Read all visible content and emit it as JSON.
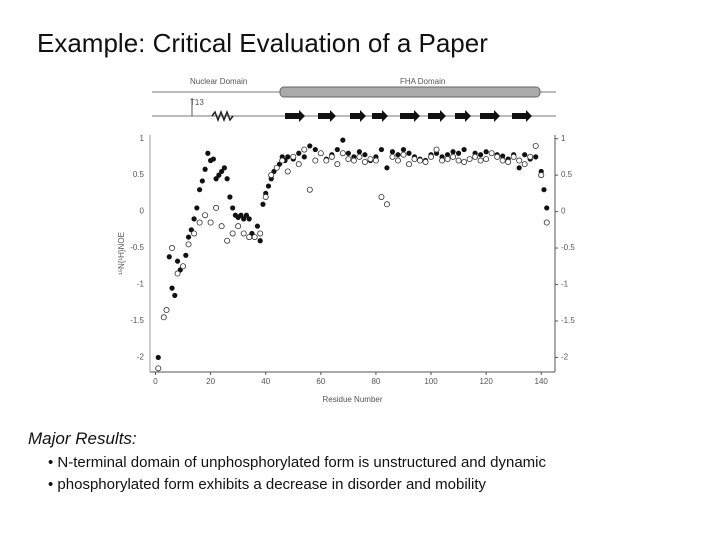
{
  "slide": {
    "title": "Example: Critical Evaluation of a Paper",
    "heading": "Major Results:",
    "bullets": [
      "• N-terminal domain of unphosphorylated form is unstructured and dynamic",
      "• phosphorylated form exhibits a decrease in disorder and mobility"
    ]
  },
  "chart_data": {
    "type": "scatter",
    "xlabel": "Residue Number",
    "ylabel": "¹⁵N{¹H}NOE",
    "annotations": [
      "Nuclear Domain",
      "FHA Domain",
      "T13"
    ],
    "xlim": [
      -2,
      145
    ],
    "ylim": [
      -2.2,
      1.05
    ],
    "xticks": [
      0,
      20,
      40,
      60,
      80,
      100,
      120,
      140
    ],
    "yticks": [
      -2,
      -1.5,
      -1,
      -0.5,
      0,
      0.5,
      1
    ],
    "series": [
      {
        "color": "#111111",
        "fill": "filled",
        "x": [
          1,
          5,
          6,
          7,
          8,
          9,
          11,
          12,
          13,
          14,
          15,
          16,
          17,
          18,
          19,
          20,
          21,
          22,
          23,
          24,
          25,
          26,
          27,
          28,
          29,
          30,
          31,
          32,
          33,
          34,
          35,
          36,
          37,
          38,
          39,
          40,
          41,
          42,
          43,
          44,
          45,
          46,
          47,
          48,
          50,
          52,
          54,
          56,
          58,
          60,
          62,
          64,
          66,
          68,
          70,
          72,
          74,
          76,
          78,
          80,
          82,
          84,
          86,
          88,
          90,
          92,
          94,
          96,
          98,
          100,
          102,
          104,
          106,
          108,
          110,
          112,
          114,
          116,
          118,
          120,
          122,
          124,
          126,
          128,
          130,
          132,
          134,
          136,
          138,
          140,
          141,
          142
        ],
        "values": [
          -2.0,
          -0.62,
          -1.05,
          -1.15,
          -0.68,
          -0.8,
          -0.6,
          -0.35,
          -0.25,
          -0.1,
          0.05,
          0.3,
          0.42,
          0.58,
          0.8,
          0.7,
          0.72,
          0.45,
          0.5,
          0.55,
          0.6,
          0.45,
          0.2,
          0.05,
          -0.05,
          -0.08,
          -0.05,
          -0.1,
          -0.05,
          -0.1,
          -0.3,
          -0.35,
          -0.2,
          -0.4,
          0.1,
          0.25,
          0.35,
          0.45,
          0.55,
          0.6,
          0.65,
          0.75,
          0.7,
          0.75,
          0.72,
          0.8,
          0.75,
          0.9,
          0.85,
          0.8,
          0.72,
          0.78,
          0.85,
          0.98,
          0.8,
          0.75,
          0.82,
          0.78,
          0.7,
          0.75,
          0.85,
          0.6,
          0.82,
          0.78,
          0.85,
          0.8,
          0.75,
          0.72,
          0.7,
          0.78,
          0.8,
          0.75,
          0.78,
          0.82,
          0.8,
          0.85,
          0.72,
          0.8,
          0.78,
          0.82,
          0.8,
          0.78,
          0.76,
          0.72,
          0.78,
          0.6,
          0.78,
          0.72,
          0.75,
          0.55,
          0.3,
          0.05
        ]
      },
      {
        "color": "#333333",
        "fill": "open",
        "x": [
          1,
          3,
          4,
          6,
          8,
          10,
          12,
          14,
          16,
          18,
          20,
          22,
          24,
          26,
          28,
          30,
          32,
          34,
          36,
          38,
          40,
          42,
          44,
          46,
          48,
          50,
          52,
          54,
          56,
          58,
          60,
          62,
          64,
          66,
          68,
          70,
          72,
          74,
          76,
          78,
          80,
          82,
          84,
          86,
          88,
          90,
          92,
          94,
          96,
          98,
          100,
          102,
          104,
          106,
          108,
          110,
          112,
          114,
          116,
          118,
          120,
          122,
          124,
          126,
          128,
          130,
          132,
          134,
          136,
          138,
          140,
          142
        ],
        "values": [
          -2.15,
          -1.45,
          -1.35,
          -0.5,
          -0.85,
          -0.75,
          -0.45,
          -0.3,
          -0.15,
          -0.05,
          -0.15,
          0.05,
          -0.2,
          -0.4,
          -0.3,
          -0.2,
          -0.3,
          -0.35,
          -0.35,
          -0.3,
          0.2,
          0.5,
          0.6,
          0.7,
          0.55,
          0.75,
          0.65,
          0.85,
          0.3,
          0.7,
          0.8,
          0.7,
          0.75,
          0.65,
          0.8,
          0.72,
          0.7,
          0.75,
          0.68,
          0.72,
          0.7,
          0.2,
          0.1,
          0.75,
          0.7,
          0.78,
          0.65,
          0.72,
          0.7,
          0.68,
          0.75,
          0.85,
          0.7,
          0.72,
          0.75,
          0.7,
          0.68,
          0.72,
          0.75,
          0.7,
          0.72,
          0.8,
          0.75,
          0.7,
          0.68,
          0.75,
          0.7,
          0.65,
          0.75,
          0.9,
          0.5,
          -0.15
        ]
      }
    ]
  }
}
